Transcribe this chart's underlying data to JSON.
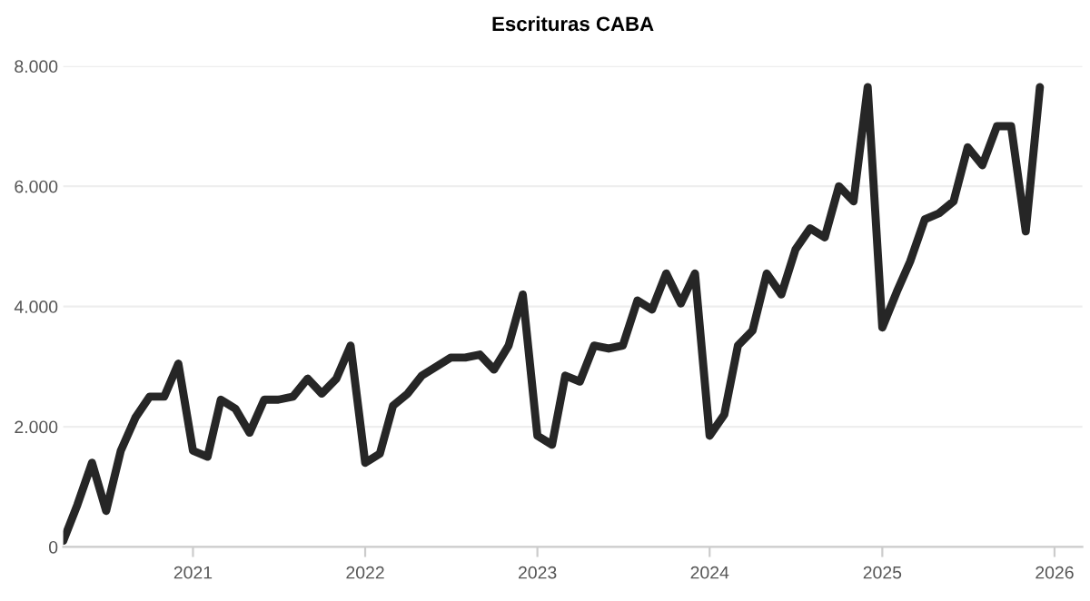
{
  "chart_data": {
    "type": "line",
    "title": "Escrituras CABA",
    "x": [
      "2020-04",
      "2020-05",
      "2020-06",
      "2020-07",
      "2020-08",
      "2020-09",
      "2020-10",
      "2020-11",
      "2020-12",
      "2021-01",
      "2021-02",
      "2021-03",
      "2021-04",
      "2021-05",
      "2021-06",
      "2021-07",
      "2021-08",
      "2021-09",
      "2021-10",
      "2021-11",
      "2021-12",
      "2022-01",
      "2022-02",
      "2022-03",
      "2022-04",
      "2022-05",
      "2022-06",
      "2022-07",
      "2022-08",
      "2022-09",
      "2022-10",
      "2022-11",
      "2022-12",
      "2023-01",
      "2023-02",
      "2023-03",
      "2023-04",
      "2023-05",
      "2023-06",
      "2023-07",
      "2023-08",
      "2023-09",
      "2023-10",
      "2023-11",
      "2023-12",
      "2024-01",
      "2024-02",
      "2024-03",
      "2024-04",
      "2024-05",
      "2024-06",
      "2024-07",
      "2024-08",
      "2024-09",
      "2024-10",
      "2024-11",
      "2024-12",
      "2025-01",
      "2025-02",
      "2025-03",
      "2025-04",
      "2025-05",
      "2025-06",
      "2025-07",
      "2025-08",
      "2025-09",
      "2025-10",
      "2025-11",
      "2025-12"
    ],
    "series": [
      {
        "color": "#262626",
        "values": [
          100,
          700,
          1400,
          600,
          1600,
          2150,
          2500,
          2500,
          3050,
          1600,
          1500,
          2450,
          2300,
          1900,
          2450,
          2450,
          2500,
          2800,
          2550,
          2800,
          3350,
          1400,
          1550,
          2350,
          2550,
          2850,
          3000,
          3150,
          3150,
          3200,
          2950,
          3350,
          4200,
          1850,
          1700,
          2850,
          2750,
          3350,
          3300,
          3350,
          4100,
          3950,
          4550,
          4050,
          4550,
          1850,
          2200,
          3350,
          3600,
          4550,
          4200,
          4950,
          5300,
          5150,
          6000,
          5750,
          7650,
          3650,
          4250,
          4750,
          5450,
          5550,
          5750,
          6650,
          6350,
          7000,
          7000,
          5250,
          7650
        ]
      }
    ],
    "xlim": [
      "2020-04-01",
      "2026-03-01"
    ],
    "xticks": [
      {
        "value": "2021-01-01",
        "label": "2021"
      },
      {
        "value": "2022-01-01",
        "label": "2022"
      },
      {
        "value": "2023-01-01",
        "label": "2023"
      },
      {
        "value": "2024-01-01",
        "label": "2024"
      },
      {
        "value": "2025-01-01",
        "label": "2025"
      },
      {
        "value": "2026-01-01",
        "label": "2026"
      }
    ],
    "ylim": [
      0,
      8000
    ],
    "yticks": [
      {
        "value": 0,
        "label": "0"
      },
      {
        "value": 2000,
        "label": "2.000"
      },
      {
        "value": 4000,
        "label": "4.000"
      },
      {
        "value": 6000,
        "label": "6.000"
      },
      {
        "value": 8000,
        "label": "8.000"
      }
    ],
    "grid": "y",
    "line_style": "solid",
    "marker": "none"
  }
}
